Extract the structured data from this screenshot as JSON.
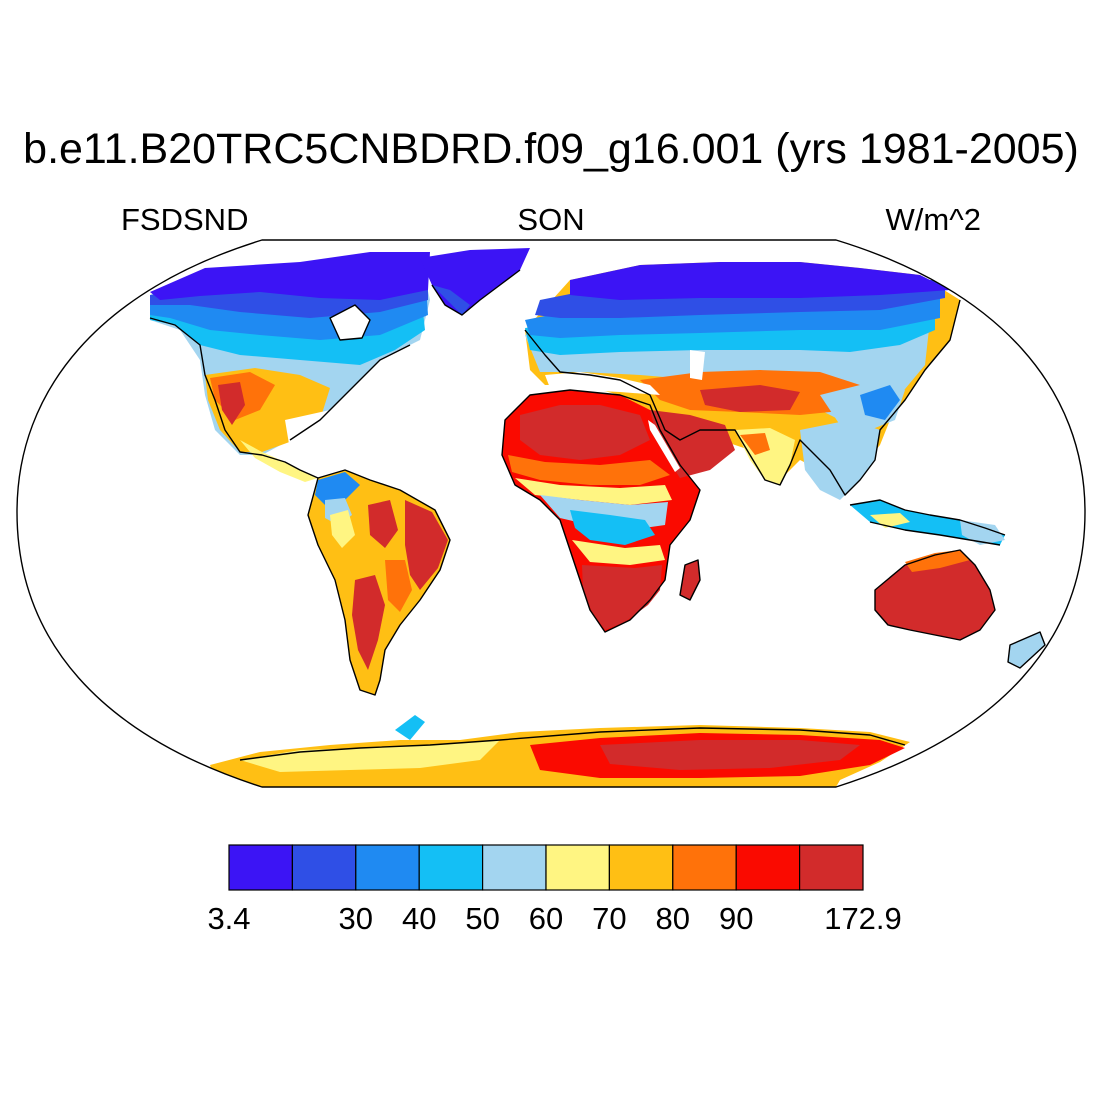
{
  "title": "b.e11.B20TRC5CNBDRD.f09_g16.001 (yrs 1981-2005)",
  "left_string": "FSDSND",
  "center_string": "SON",
  "right_string": "W/m^2",
  "colorbar": {
    "colors": [
      "#3c14f5",
      "#2f4fe6",
      "#1f8af2",
      "#14bff5",
      "#a3d5f0",
      "#fff582",
      "#ffbf14",
      "#ff720a",
      "#fa0a00",
      "#d22b2b"
    ],
    "labels": [
      "3.4",
      "",
      "30",
      "40",
      "50",
      "60",
      "70",
      "80",
      "90",
      "",
      "172.9"
    ]
  },
  "colors": {
    "ocean": "#ffffff",
    "coastline": "#000000"
  }
}
